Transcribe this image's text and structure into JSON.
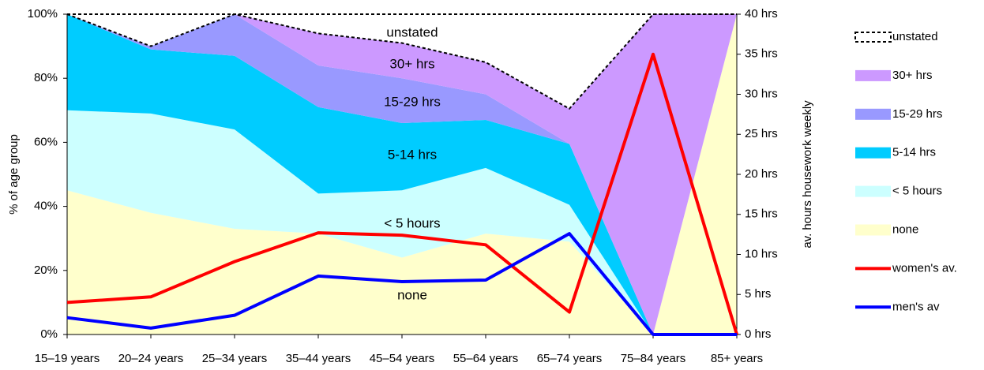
{
  "chart_data": {
    "type": "area",
    "categories": [
      "15–19 years",
      "20–24 years",
      "25–34 years",
      "35–44 years",
      "45–54 years",
      "55–64 years",
      "65–74 years",
      "75–84 years",
      "85+ years"
    ],
    "ylabel": "% of age group",
    "y2label": "av. hours housework weekly",
    "ylim": [
      0,
      100
    ],
    "yticks": [
      {
        "value": 0,
        "label": "0%"
      },
      {
        "value": 20,
        "label": "20%"
      },
      {
        "value": 40,
        "label": "40%"
      },
      {
        "value": 60,
        "label": "60%"
      },
      {
        "value": 80,
        "label": "80%"
      },
      {
        "value": 100,
        "label": "100%"
      }
    ],
    "y2lim": [
      0,
      40
    ],
    "y2ticks": [
      {
        "value": 0,
        "label": "0 hrs"
      },
      {
        "value": 5,
        "label": "5 hrs"
      },
      {
        "value": 10,
        "label": "10 hrs"
      },
      {
        "value": 15,
        "label": "15 hrs"
      },
      {
        "value": 20,
        "label": "20 hrs"
      },
      {
        "value": 25,
        "label": "25 hrs"
      },
      {
        "value": 30,
        "label": "30 hrs"
      },
      {
        "value": 35,
        "label": "35 hrs"
      },
      {
        "value": 40,
        "label": "40 hrs"
      }
    ],
    "series": [
      {
        "name": "none",
        "type": "area",
        "color": "#ffffcc",
        "values": [
          45,
          38,
          33,
          31.5,
          24,
          31.5,
          29,
          0,
          100
        ]
      },
      {
        "name": "< 5 hours",
        "type": "area",
        "color": "#ccffff",
        "values": [
          25,
          31,
          31,
          12.5,
          21,
          20.5,
          11.5,
          0,
          0
        ]
      },
      {
        "name": "5-14 hrs",
        "type": "area",
        "color": "#00ccff",
        "values": [
          30,
          20,
          23,
          27,
          21,
          15,
          19,
          0,
          0
        ]
      },
      {
        "name": "15-29 hrs",
        "type": "area",
        "color": "#9999ff",
        "values": [
          0,
          1,
          13,
          13,
          14,
          8,
          0,
          0,
          0
        ]
      },
      {
        "name": "30+ hrs",
        "type": "area",
        "color": "#cc99ff",
        "values": [
          0,
          0,
          0,
          10,
          11,
          10,
          11,
          100,
          0
        ]
      },
      {
        "name": "unstated",
        "type": "area",
        "color": "#ffffff",
        "values": [
          0,
          10,
          0,
          6,
          9,
          15,
          29.5,
          0,
          0
        ]
      },
      {
        "name": "women's av.",
        "type": "line",
        "axis": "y2",
        "color": "#ff0000",
        "values": [
          4.0,
          4.7,
          9.1,
          12.7,
          12.4,
          11.2,
          2.8,
          35,
          0
        ]
      },
      {
        "name": "men's av",
        "type": "line",
        "axis": "y2",
        "color": "#0000ff",
        "values": [
          2.1,
          0.8,
          2.4,
          7.3,
          6.6,
          6.8,
          12.6,
          0,
          0
        ]
      }
    ],
    "annotations": [
      "unstated",
      "30+ hrs",
      "15-29 hrs",
      "5-14 hrs",
      "< 5 hours",
      "none"
    ]
  }
}
